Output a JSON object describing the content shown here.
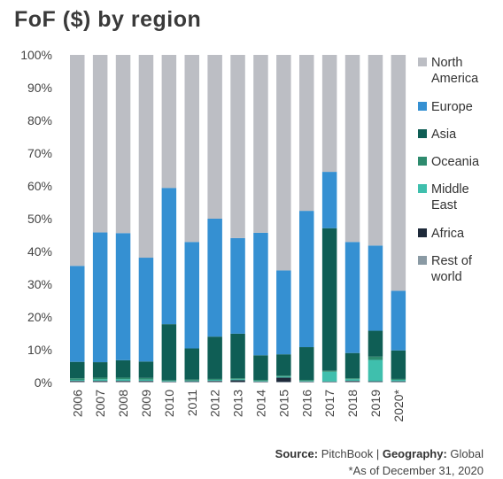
{
  "chart_data": {
    "type": "bar",
    "stacked": true,
    "title": "FoF ($) by region",
    "categories": [
      "2006",
      "2007",
      "2008",
      "2009",
      "2010",
      "2011",
      "2012",
      "2013",
      "2014",
      "2015",
      "2016",
      "2017",
      "2018",
      "2019",
      "2020*"
    ],
    "y_ticks": [
      "0%",
      "10%",
      "20%",
      "30%",
      "40%",
      "50%",
      "60%",
      "70%",
      "80%",
      "90%",
      "100%"
    ],
    "ylim": [
      0,
      100
    ],
    "legend_position": "right",
    "series": [
      {
        "name": "Rest of world",
        "color": "#8a9aa4",
        "values": [
          0.3,
          0.3,
          0.3,
          0.3,
          0.2,
          0.3,
          0.3,
          0.2,
          0.2,
          0.2,
          0.2,
          0.2,
          0.3,
          0.3,
          0.3
        ]
      },
      {
        "name": "Africa",
        "color": "#1e2a3a",
        "values": [
          0.2,
          0.2,
          0.2,
          0.2,
          0.1,
          0.1,
          0.2,
          0.5,
          0.1,
          1.3,
          0.1,
          0.1,
          0.2,
          0.1,
          0.1
        ]
      },
      {
        "name": "Middle East",
        "color": "#3fbfad",
        "values": [
          0.3,
          0.5,
          0.5,
          0.4,
          0.2,
          0.2,
          0.3,
          0.3,
          0.2,
          0.3,
          0.2,
          3.0,
          0.5,
          6.5,
          0.4
        ]
      },
      {
        "name": "Oceania",
        "color": "#2e8b6e",
        "values": [
          0.5,
          0.5,
          0.5,
          0.5,
          0.2,
          0.3,
          0.3,
          0.3,
          0.3,
          0.3,
          0.3,
          0.3,
          0.3,
          1.0,
          0.3
        ]
      },
      {
        "name": "Asia",
        "color": "#0f5e55",
        "values": [
          5.0,
          4.7,
          5.3,
          5.0,
          17.1,
          9.5,
          12.9,
          13.6,
          7.5,
          6.5,
          10.0,
          43.5,
          7.7,
          7.9,
          8.7
        ]
      },
      {
        "name": "Europe",
        "color": "#3590d2",
        "values": [
          29.3,
          39.6,
          38.8,
          31.7,
          41.6,
          32.5,
          36.0,
          29.2,
          37.4,
          25.6,
          41.6,
          17.2,
          33.9,
          26.0,
          18.2
        ]
      },
      {
        "name": "North America",
        "color": "#bcbec4",
        "values": [
          64.4,
          54.2,
          54.4,
          61.9,
          40.6,
          57.1,
          50.0,
          55.9,
          54.3,
          65.8,
          47.6,
          35.7,
          57.1,
          58.2,
          72.0
        ]
      }
    ],
    "legend": [
      {
        "label": "North America",
        "color": "#bcbec4"
      },
      {
        "label": "Europe",
        "color": "#3590d2"
      },
      {
        "label": "Asia",
        "color": "#0f5e55"
      },
      {
        "label": "Oceania",
        "color": "#2e8b6e"
      },
      {
        "label": "Middle East",
        "color": "#3fbfad"
      },
      {
        "label": "Africa",
        "color": "#1e2a3a"
      },
      {
        "label": "Rest of world",
        "color": "#8a9aa4"
      }
    ]
  },
  "footer": {
    "source_label": "Source:",
    "source_value": " PitchBook | ",
    "geography_label": "Geography:",
    "geography_value": " Global",
    "note": "*As of December 31, 2020"
  }
}
